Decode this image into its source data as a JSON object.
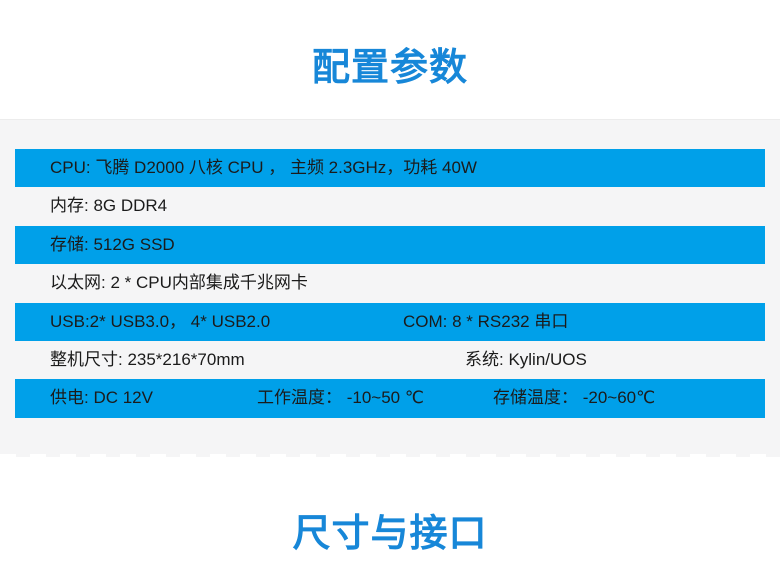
{
  "theme": {
    "accent_blue": "#1787d8",
    "row_highlight_blue": "#00a0e9",
    "band_background": "#f5f5f6",
    "text_color": "#1b1b1b"
  },
  "sections": {
    "config": {
      "title": "配置参数"
    },
    "dimensions": {
      "title": "尺寸与接口"
    }
  },
  "spec_table": {
    "rows": [
      {
        "highlight": true,
        "cells": [
          {
            "text": "CPU: 飞腾 D2000 八核 CPU ， 主频 2.3GHz，功耗 40W"
          }
        ]
      },
      {
        "highlight": false,
        "cells": [
          {
            "text": "内存:  8G DDR4"
          }
        ]
      },
      {
        "highlight": true,
        "cells": [
          {
            "text": "存储: 512G SSD"
          }
        ]
      },
      {
        "highlight": false,
        "cells": [
          {
            "text": "以太网:  2 * CPU内部集成千兆网卡"
          }
        ]
      },
      {
        "highlight": true,
        "cells": [
          {
            "text": "USB:2* USB3.0， 4* USB2.0"
          },
          {
            "text": "COM: 8 * RS232 串口"
          }
        ]
      },
      {
        "highlight": false,
        "cells": [
          {
            "text": "整机尺寸: 235*216*70mm"
          },
          {
            "text": "系统: Kylin/UOS"
          }
        ]
      },
      {
        "highlight": true,
        "cells": [
          {
            "text": "供电: DC 12V"
          },
          {
            "text": "工作温度：  -10~50 ℃"
          },
          {
            "text": "存储温度：  -20~60℃"
          }
        ]
      }
    ]
  }
}
